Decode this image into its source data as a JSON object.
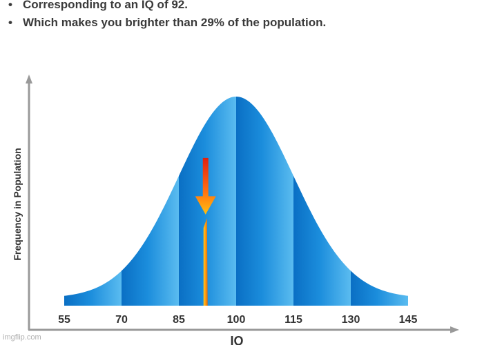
{
  "bullets": [
    "Corresponding to an IQ of 92.",
    "Which makes you brighter than 29% of the population."
  ],
  "watermark": "imgflip.com",
  "colors": {
    "curve_dark": "#0a6fc4",
    "curve_light": "#5bbcf0",
    "axis": "#999999",
    "marker_top": "#e02010",
    "marker_bottom": "#ffc010"
  },
  "chart_data": {
    "type": "area",
    "distribution": "normal",
    "mean": 100,
    "sd": 15,
    "xlim": [
      55,
      145
    ],
    "xticks": [
      55,
      70,
      85,
      100,
      115,
      130,
      145
    ],
    "tick_labels": [
      "55",
      "70",
      "85",
      "100",
      "115",
      "130",
      "145"
    ],
    "xlabel": "IQ",
    "ylabel": "Frequency in Population",
    "marker": {
      "x": 92,
      "type": "arrow-down"
    },
    "grid": false,
    "legend": "none"
  }
}
